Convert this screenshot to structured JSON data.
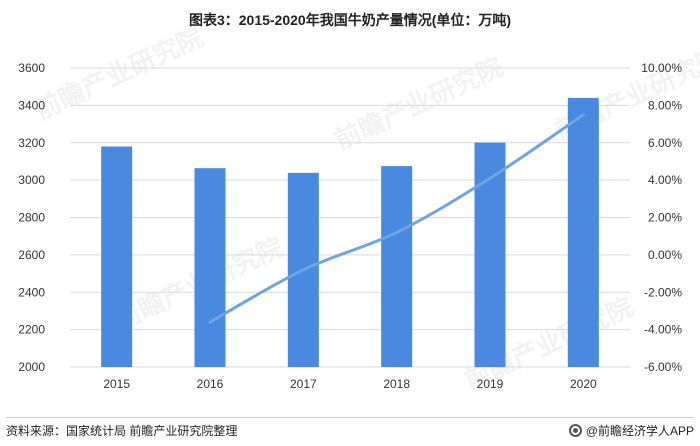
{
  "title": "图表3：2015-2020年我国牛奶产量情况(单位：万吨)",
  "source_label": "资料来源：国家统计局 前瞻产业研究院整理",
  "brand": "@前瞻经济学人APP",
  "watermark_text": "前瞻产业研究院",
  "colors": {
    "bar": "#4a89e0",
    "line": "#6fa3e6",
    "grid": "#d9d9d9",
    "axis_text": "#333333"
  },
  "chart_data": {
    "type": "bar",
    "categories": [
      "2015",
      "2016",
      "2017",
      "2018",
      "2019",
      "2020"
    ],
    "series": [
      {
        "type": "bar",
        "axis": "left",
        "values": [
          3180,
          3064,
          3039,
          3075,
          3201,
          3440
        ]
      },
      {
        "type": "line",
        "axis": "right",
        "values": [
          null,
          -3.6,
          -0.8,
          1.2,
          4.1,
          7.5
        ]
      }
    ],
    "y_left": {
      "min": 2000,
      "max": 3600,
      "step": 200,
      "ticks": [
        "2000",
        "2200",
        "2400",
        "2600",
        "2800",
        "3000",
        "3200",
        "3400",
        "3600"
      ]
    },
    "y_right": {
      "min": -6,
      "max": 10,
      "step": 2,
      "ticks": [
        "-6.00%",
        "-4.00%",
        "-2.00%",
        "0.00%",
        "2.00%",
        "4.00%",
        "6.00%",
        "8.00%",
        "10.00%"
      ]
    },
    "grid": true,
    "legend": "none"
  }
}
